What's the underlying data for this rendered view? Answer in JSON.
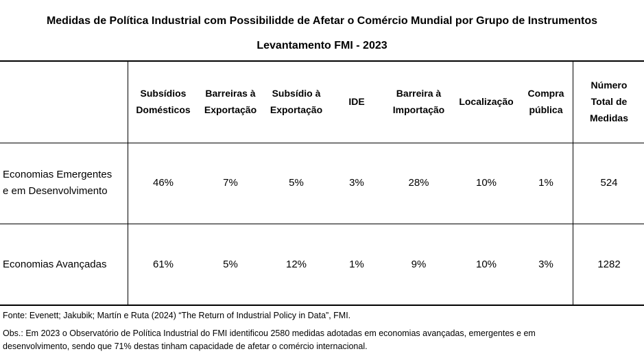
{
  "title": {
    "line1": "Medidas de Política Industrial com Possibilidde de Afetar o Comércio Mundial por Grupo de Instrumentos",
    "line2": "Levantamento FMI - 2023"
  },
  "table": {
    "columns": [
      [
        "Subsídios",
        "Domésticos"
      ],
      [
        "Barreiras à",
        "Exportação"
      ],
      [
        "Subsídio à",
        "Exportação"
      ],
      [
        "IDE"
      ],
      [
        "Barreira à",
        "Importação"
      ],
      [
        "Localização"
      ],
      [
        "Compra",
        "pública"
      ],
      [
        "Número",
        "Total de",
        "Medidas"
      ]
    ],
    "rows": [
      {
        "label": [
          "Economias Emergentes",
          "e em Desenvolvimento"
        ],
        "values": [
          "46%",
          "7%",
          "5%",
          "3%",
          "28%",
          "10%",
          "1%",
          "524"
        ]
      },
      {
        "label": [
          "Economias Avançadas"
        ],
        "values": [
          "61%",
          "5%",
          "12%",
          "1%",
          "9%",
          "10%",
          "3%",
          "1282"
        ]
      }
    ]
  },
  "notes": {
    "source": "Fonte: Evenett; Jakubik; Martín e Ruta (2024) “The Return of Industrial Policy in Data”, FMI.",
    "obs_line1": "Obs.: Em 2023 o Observatório de Política Industrial do FMI identificou 2580 medidas adotadas em economias avançadas, emergentes e em",
    "obs_line2": "desenvolvimento, sendo que 71% destas tinham capacidade de afetar o comércio internacional."
  }
}
